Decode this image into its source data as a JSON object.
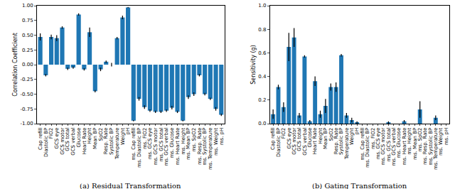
{
  "chart_data": [
    {
      "type": "bar",
      "title": "(a) Residual Transformation",
      "y_label": "Correlation Coefficient",
      "color": "#1f77b4",
      "grid": false,
      "categories": [
        "Cap refill",
        "Diastolic BP",
        "FiO2",
        "GCS eye",
        "GCS motor",
        "GCS total",
        "GCS verbal",
        "Glucose",
        "Heart Rate",
        "Height",
        "Mean BP",
        "SpO2",
        "Resp. Rate",
        "Systolic BP",
        "Temperature",
        "Weight",
        "pH",
        "ms. Cap refill",
        "ms. Diastolic BP",
        "ms. FiO2",
        "ms. GCS eye",
        "ms. GCS motor",
        "ms. GCS total",
        "ms. GCS verbal",
        "ms. Glucose",
        "ms. Heart Rate",
        "ms. Height",
        "ms. Mean BP",
        "ms. SpO2",
        "ms. Resp. Rate",
        "ms. Systolic BP",
        "ms. Temperature",
        "ms. Weight",
        "ms. pH"
      ],
      "values": [
        0.47,
        -0.18,
        0.47,
        0.45,
        0.63,
        -0.07,
        -0.05,
        0.85,
        -0.08,
        0.55,
        -0.45,
        -0.08,
        0.05,
        0.0,
        0.45,
        0.8,
        0.97,
        -0.95,
        -0.58,
        -0.72,
        -0.78,
        -0.8,
        -0.8,
        -0.78,
        -0.73,
        -0.8,
        -0.95,
        -0.55,
        -0.5,
        -0.18,
        -0.5,
        -0.58,
        -0.75,
        -0.85
      ],
      "errors": [
        0.06,
        0.02,
        0.04,
        0.05,
        0.02,
        0.02,
        0.02,
        0.02,
        0.02,
        0.08,
        0.02,
        0.03,
        0.02,
        0.03,
        0.02,
        0.03,
        0.01,
        0.01,
        0.03,
        0.03,
        0.02,
        0.02,
        0.02,
        0.02,
        0.03,
        0.02,
        0.01,
        0.03,
        0.03,
        0.02,
        0.02,
        0.02,
        0.03,
        0.02
      ],
      "ylim": [
        -1,
        1
      ],
      "yticks": [
        {
          "value": -1,
          "label": "-1.00"
        },
        {
          "value": -0.75,
          "label": "-0.75"
        },
        {
          "value": -0.5,
          "label": "-0.50"
        },
        {
          "value": -0.25,
          "label": "-0.25"
        },
        {
          "value": 0,
          "label": "0.00"
        },
        {
          "value": 0.25,
          "label": "0.25"
        },
        {
          "value": 0.5,
          "label": "0.50"
        },
        {
          "value": 0.75,
          "label": "0.75"
        },
        {
          "value": 1,
          "label": "1.00"
        }
      ]
    },
    {
      "type": "bar",
      "title": "(b) Gating Transformation",
      "y_label": "Sensitivity (g)",
      "color": "#1f77b4",
      "grid": false,
      "categories": [
        "Cap refill",
        "Diastolic BP",
        "FiO2",
        "GCS eye",
        "GCS motor",
        "GCS total",
        "GCS verbal",
        "Glucose",
        "Heart Rate",
        "Height",
        "Mean BP",
        "SpO2",
        "Resp. Rate",
        "Systolic BP",
        "Temperature",
        "Weight",
        "pH",
        "ms. Cap refill",
        "ms. Diastolic BP",
        "ms. FiO2",
        "ms. GCS eye",
        "ms. GCS motor",
        "ms. GCS total",
        "ms. GCS verbal",
        "ms. Glucose",
        "ms. Heart Rate",
        "ms. Height",
        "ms. Mean BP",
        "ms. SpO2",
        "ms. Resp. Rate",
        "ms. Systolic BP",
        "ms. Temperature",
        "ms. Weight",
        "ms. pH"
      ],
      "values": [
        0.08,
        0.31,
        0.14,
        0.65,
        0.73,
        0.07,
        0.57,
        0.02,
        0.36,
        0.08,
        0.15,
        0.31,
        0.31,
        0.58,
        0.07,
        0.03,
        0.01,
        0.0,
        0.0,
        0.0,
        0.0,
        0.0,
        0.01,
        0.0,
        0.0,
        0.02,
        0.0,
        0.0,
        0.12,
        0.0,
        0.0,
        0.05,
        0.0,
        0.0
      ],
      "errors": [
        0.04,
        0.02,
        0.04,
        0.12,
        0.08,
        0.02,
        0.01,
        0.01,
        0.04,
        0.03,
        0.06,
        0.03,
        0.04,
        0.01,
        0.02,
        0.02,
        0.01,
        0.0,
        0.0,
        0.0,
        0.0,
        0.0,
        0.01,
        0.0,
        0.0,
        0.01,
        0.0,
        0.0,
        0.07,
        0.0,
        0.0,
        0.02,
        0.0,
        0.0
      ],
      "ylim": [
        0,
        1
      ],
      "yticks": [
        {
          "value": 0,
          "label": "0.0"
        },
        {
          "value": 0.2,
          "label": "0.2"
        },
        {
          "value": 0.4,
          "label": "0.4"
        },
        {
          "value": 0.6,
          "label": "0.6"
        },
        {
          "value": 0.8,
          "label": "0.8"
        },
        {
          "value": 1,
          "label": "1.0"
        }
      ]
    }
  ]
}
